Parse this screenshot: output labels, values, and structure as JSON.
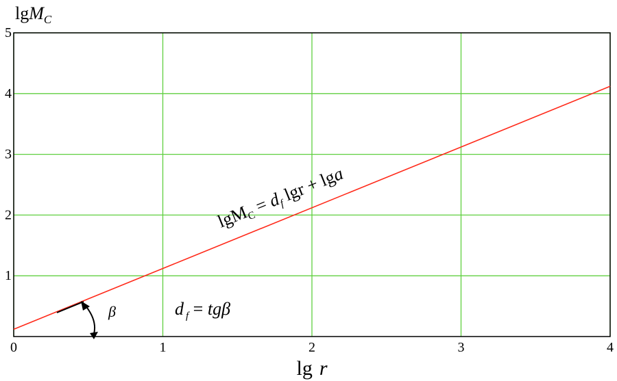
{
  "chart_data": {
    "type": "line",
    "ylabel": [
      "lg",
      "M",
      "C"
    ],
    "xlabel": [
      "lg",
      "r"
    ],
    "x": [
      0,
      4
    ],
    "series": [
      {
        "name": "lgMc",
        "color": "#ff2a1a",
        "values": [
          0.12,
          4.12
        ]
      }
    ],
    "xlim": [
      0,
      4
    ],
    "ylim": [
      0,
      5
    ],
    "xticks": [
      0,
      1,
      2,
      3,
      4
    ],
    "yticks": [
      1,
      2,
      3,
      4,
      5
    ],
    "grid": true,
    "grid_color": "#5fcf3f",
    "annotations": [
      [
        "lgM",
        "C",
        " = ",
        "d",
        "f",
        " lgr",
        " + ",
        "lg",
        "a"
      ],
      [
        "d",
        "f",
        " = ",
        "tg",
        "β"
      ],
      [
        "β"
      ]
    ]
  }
}
